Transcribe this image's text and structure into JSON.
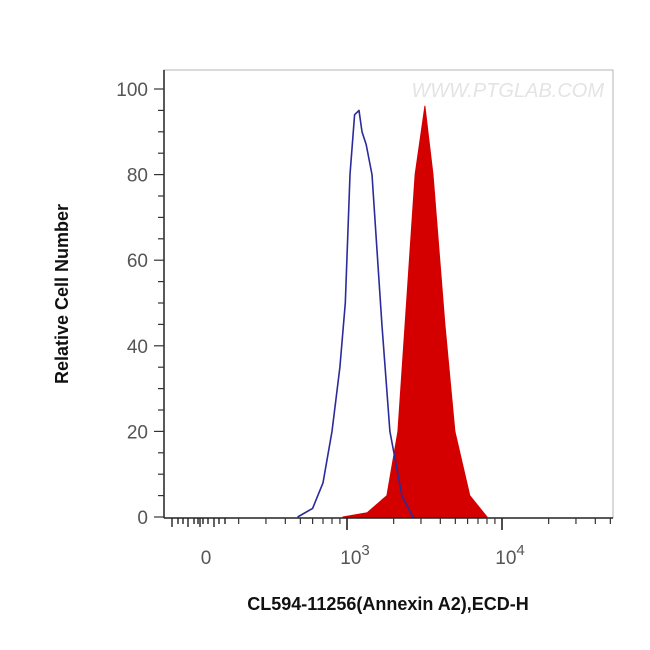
{
  "chart_data": {
    "type": "area",
    "title": "",
    "xlabel": "CL594-11256(Annexin A2),ECD-H",
    "ylabel": "Relative Cell Number",
    "watermark": "WWW.PTGLAB.COM",
    "x_scale": "log",
    "ylim": [
      0,
      100
    ],
    "grid": false,
    "y_ticks": [
      {
        "value": 0,
        "label": "0"
      },
      {
        "value": 20,
        "label": "20"
      },
      {
        "value": 40,
        "label": "40"
      },
      {
        "value": 60,
        "label": "60"
      },
      {
        "value": 80,
        "label": "80"
      },
      {
        "value": 100,
        "label": "100"
      }
    ],
    "x_ticks": [
      {
        "value": 0,
        "base": "0",
        "exp": ""
      },
      {
        "value": 1000,
        "base": "10",
        "exp": "3"
      },
      {
        "value": 10000,
        "base": "10",
        "exp": "4"
      }
    ],
    "series": [
      {
        "style": "outline",
        "color": "#2b2b9a",
        "points": [
          [
            480,
            0
          ],
          [
            600,
            2
          ],
          [
            700,
            8
          ],
          [
            800,
            20
          ],
          [
            900,
            35
          ],
          [
            975,
            50
          ],
          [
            1045,
            80
          ],
          [
            1120,
            94
          ],
          [
            1195,
            95
          ],
          [
            1250,
            90
          ],
          [
            1330,
            87
          ],
          [
            1450,
            80
          ],
          [
            1680,
            45
          ],
          [
            1890,
            20
          ],
          [
            2260,
            5
          ],
          [
            2660,
            0
          ]
        ]
      },
      {
        "style": "filled",
        "color": "#d40000",
        "points": [
          [
            940,
            0
          ],
          [
            1350,
            1
          ],
          [
            1810,
            5
          ],
          [
            2130,
            20
          ],
          [
            2370,
            45
          ],
          [
            2750,
            80
          ],
          [
            3180,
            96
          ],
          [
            3590,
            80
          ],
          [
            4280,
            45
          ],
          [
            4970,
            20
          ],
          [
            6200,
            5
          ],
          [
            8000,
            0
          ]
        ]
      }
    ]
  }
}
